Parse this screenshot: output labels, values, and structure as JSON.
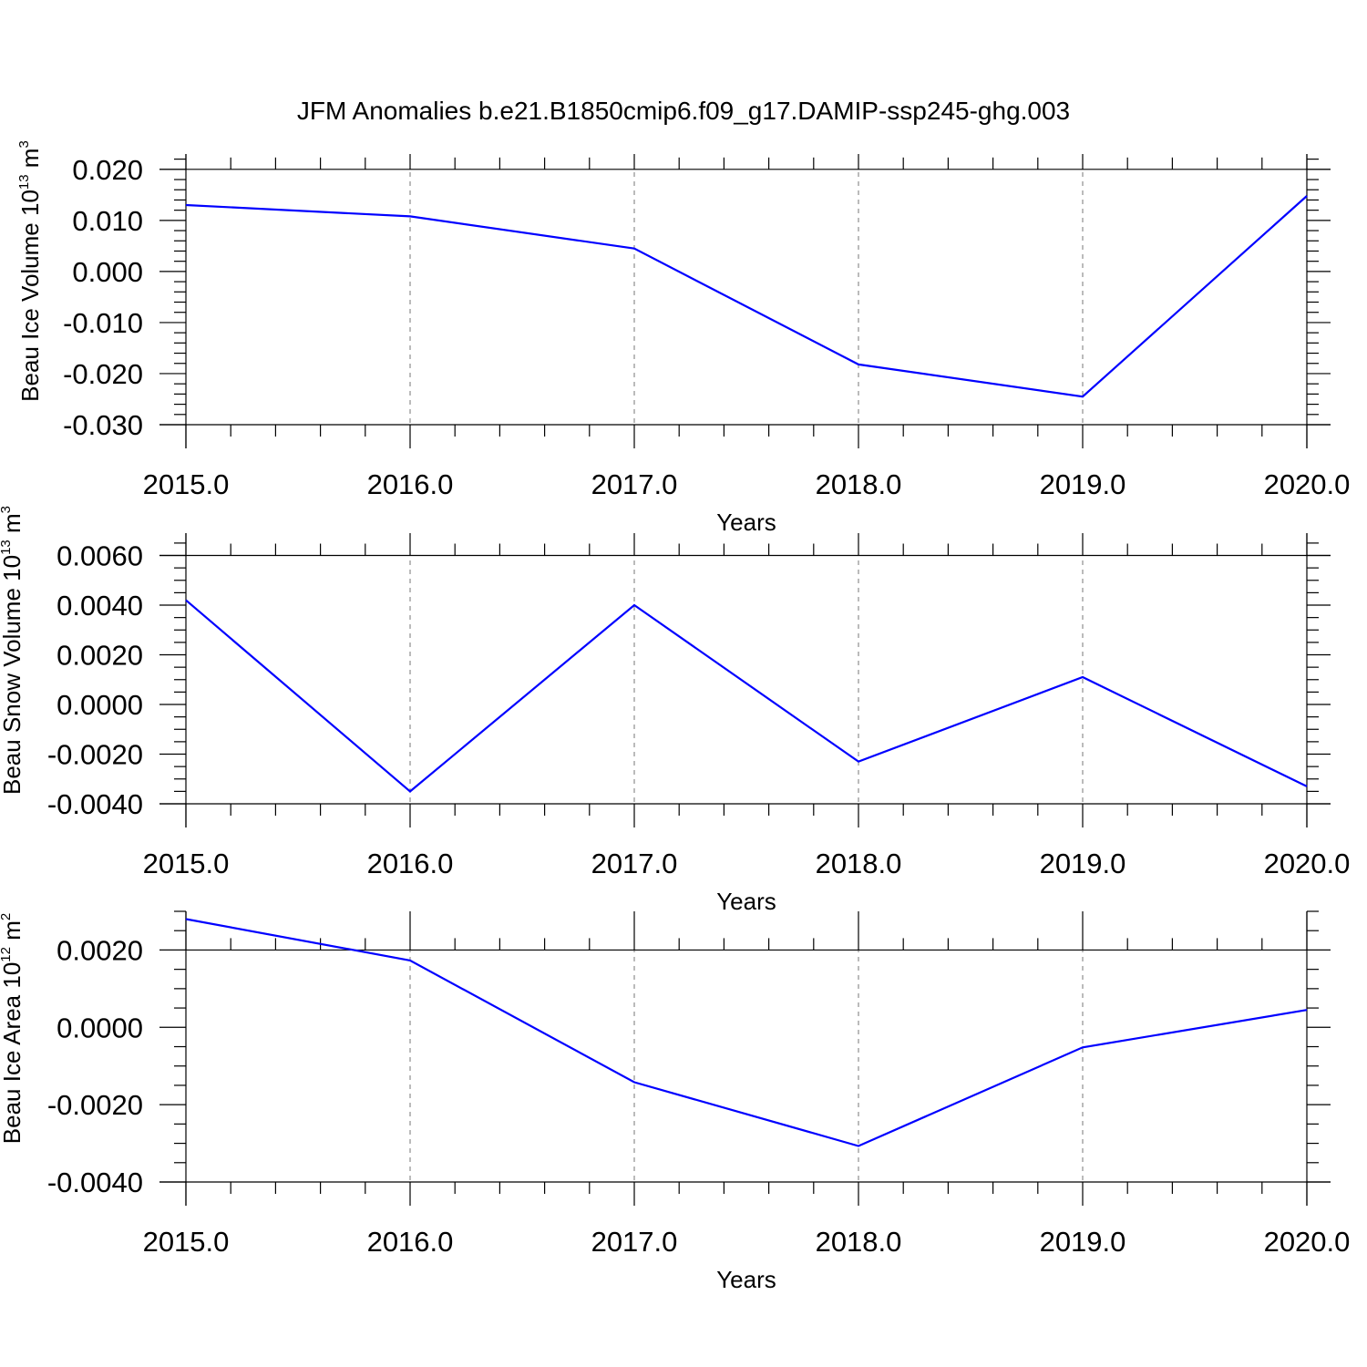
{
  "colors": {
    "series": "#0000ff",
    "axis": "#000000",
    "grid": "#777777"
  },
  "chart_data": [
    {
      "type": "line",
      "title": "JFM Anomalies b.e21.B1850cmip6.f09_g17.DAMIP-ssp245-ghg.003",
      "xlabel": "Years",
      "ylabel": {
        "text": "Beau Ice Volume 10",
        "sup": "13",
        "unit": " m",
        "unit_sup": "3"
      },
      "x": [
        2015,
        2016,
        2017,
        2018,
        2019,
        2020
      ],
      "y": [
        0.013,
        0.0108,
        0.0045,
        -0.0182,
        -0.0245,
        0.0148
      ],
      "xlim": [
        2015,
        2020
      ],
      "ylim": [
        -0.03,
        0.023
      ],
      "xticks": [
        2015,
        2016,
        2017,
        2018,
        2019,
        2020
      ],
      "xtick_labels": [
        "2015.0",
        "2016.0",
        "2017.0",
        "2018.0",
        "2019.0",
        "2020.0"
      ],
      "yticks": [
        0.02,
        0.01,
        0.0,
        -0.01,
        -0.02,
        -0.03
      ],
      "ytick_labels": [
        "0.020",
        "0.010",
        "0.000",
        "-0.010",
        "-0.020",
        "-0.030"
      ],
      "minor_y_step": 0.002,
      "grid": "x-dashed"
    },
    {
      "type": "line",
      "title": "",
      "xlabel": "Years",
      "ylabel": {
        "text": "Beau Snow Volume 10",
        "sup": "13",
        "unit": " m",
        "unit_sup": "3"
      },
      "x": [
        2015,
        2016,
        2017,
        2018,
        2019,
        2020
      ],
      "y": [
        0.0042,
        -0.0035,
        0.004,
        -0.0023,
        0.0011,
        -0.0033
      ],
      "xlim": [
        2015,
        2020
      ],
      "ylim": [
        -0.004,
        0.0069
      ],
      "xticks": [
        2015,
        2016,
        2017,
        2018,
        2019,
        2020
      ],
      "xtick_labels": [
        "2015.0",
        "2016.0",
        "2017.0",
        "2018.0",
        "2019.0",
        "2020.0"
      ],
      "yticks": [
        0.006,
        0.004,
        0.002,
        0.0,
        -0.002,
        -0.004
      ],
      "ytick_labels": [
        "0.0060",
        "0.0040",
        "0.0020",
        "0.0000",
        "-0.0020",
        "-0.0040"
      ],
      "minor_y_step": 0.0005,
      "grid": "x-dashed"
    },
    {
      "type": "line",
      "title": "",
      "xlabel": "Years",
      "ylabel": {
        "text": "Beau Ice Area 10",
        "sup": "12",
        "unit": " m",
        "unit_sup": "2"
      },
      "x": [
        2015,
        2016,
        2017,
        2018,
        2019,
        2020
      ],
      "y": [
        0.0028,
        0.00173,
        -0.00142,
        -0.00307,
        -0.00052,
        0.00045
      ],
      "xlim": [
        2015,
        2020
      ],
      "ylim": [
        -0.004,
        0.003
      ],
      "xticks": [
        2015,
        2016,
        2017,
        2018,
        2019,
        2020
      ],
      "xtick_labels": [
        "2015.0",
        "2016.0",
        "2017.0",
        "2018.0",
        "2019.0",
        "2020.0"
      ],
      "yticks": [
        0.002,
        0.0,
        -0.002,
        -0.004
      ],
      "ytick_labels": [
        "0.0020",
        "0.0000",
        "-0.0020",
        "-0.0040"
      ],
      "minor_y_step": 0.0005,
      "grid": "x-dashed"
    }
  ]
}
